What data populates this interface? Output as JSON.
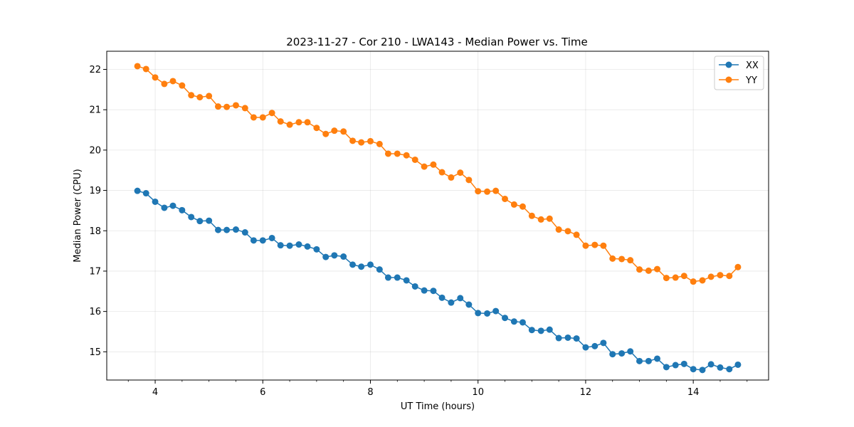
{
  "chart_data": {
    "type": "line",
    "title": "2023-11-27 - Cor 210 - LWA143 - Median Power vs. Time",
    "xlabel": "UT Time (hours)",
    "ylabel": "Median Power (CPU)",
    "xlim": [
      3.1,
      15.4
    ],
    "ylim": [
      14.3,
      22.45
    ],
    "x_ticks": [
      4,
      6,
      8,
      10,
      12,
      14
    ],
    "x_minor_step": 0.5,
    "y_ticks": [
      15,
      16,
      17,
      18,
      19,
      20,
      21,
      22
    ],
    "grid": true,
    "legend_position": "top-right",
    "x": [
      3.67,
      3.83,
      4.0,
      4.17,
      4.33,
      4.5,
      4.67,
      4.83,
      5.0,
      5.17,
      5.33,
      5.5,
      5.67,
      5.83,
      6.0,
      6.17,
      6.33,
      6.5,
      6.67,
      6.83,
      7.0,
      7.17,
      7.33,
      7.5,
      7.67,
      7.83,
      8.0,
      8.17,
      8.33,
      8.5,
      8.67,
      8.83,
      9.0,
      9.17,
      9.33,
      9.5,
      9.67,
      9.83,
      10.0,
      10.17,
      10.33,
      10.5,
      10.67,
      10.83,
      11.0,
      11.17,
      11.33,
      11.5,
      11.67,
      11.83,
      12.0,
      12.17,
      12.33,
      12.5,
      12.67,
      12.83,
      13.0,
      13.17,
      13.33,
      13.5,
      13.67,
      13.83,
      14.0,
      14.17,
      14.33,
      14.5,
      14.67,
      14.83
    ],
    "series": [
      {
        "name": "XX",
        "color": "#1f77b4",
        "values": [
          18.99,
          18.93,
          18.72,
          18.57,
          18.62,
          18.51,
          18.34,
          18.24,
          18.25,
          18.02,
          18.02,
          18.03,
          17.96,
          17.76,
          17.76,
          17.82,
          17.64,
          17.63,
          17.66,
          17.61,
          17.54,
          17.35,
          17.39,
          17.36,
          17.16,
          17.11,
          17.16,
          17.04,
          16.84,
          16.84,
          16.77,
          16.62,
          16.52,
          16.51,
          16.34,
          16.22,
          16.33,
          16.17,
          15.96,
          15.95,
          16.01,
          15.84,
          15.75,
          15.73,
          15.54,
          15.52,
          15.55,
          15.34,
          15.35,
          15.33,
          15.11,
          15.14,
          15.22,
          14.94,
          14.96,
          15.01,
          14.77,
          14.77,
          14.83,
          14.62,
          14.67,
          14.7,
          14.57,
          14.55,
          14.69,
          14.61,
          14.57,
          14.68
        ]
      },
      {
        "name": "YY",
        "color": "#ff7f0e",
        "values": [
          22.08,
          22.01,
          21.8,
          21.64,
          21.71,
          21.6,
          21.36,
          21.31,
          21.34,
          21.08,
          21.07,
          21.11,
          21.04,
          20.81,
          20.81,
          20.92,
          20.71,
          20.63,
          20.69,
          20.69,
          20.55,
          20.4,
          20.48,
          20.46,
          20.23,
          20.19,
          20.22,
          20.15,
          19.91,
          19.91,
          19.87,
          19.76,
          19.59,
          19.64,
          19.45,
          19.32,
          19.44,
          19.26,
          18.98,
          18.97,
          18.99,
          18.79,
          18.65,
          18.6,
          18.37,
          18.28,
          18.3,
          18.03,
          17.99,
          17.9,
          17.63,
          17.65,
          17.63,
          17.31,
          17.3,
          17.27,
          17.04,
          17.01,
          17.05,
          16.83,
          16.84,
          16.88,
          16.74,
          16.77,
          16.86,
          16.9,
          16.88,
          17.1
        ]
      }
    ]
  }
}
